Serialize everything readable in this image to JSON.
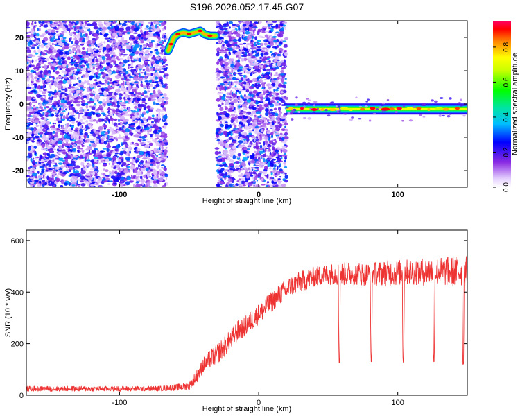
{
  "title": "S196.2026.052.17.45.G07",
  "chart_data": [
    {
      "type": "heatmap",
      "title": "S196.2026.052.17.45.G07",
      "xlabel": "Height of straight line (km)",
      "ylabel": "Frequency (Hz)",
      "xlim": [
        -167,
        150
      ],
      "ylim": [
        -25,
        25
      ],
      "xticks": [
        -100,
        0,
        100
      ],
      "yticks": [
        -20,
        -10,
        0,
        10,
        20
      ],
      "colorbar": {
        "label": "Normalized spectral amplitude",
        "range": [
          0,
          0.95
        ],
        "ticks": [
          0.0,
          0.2,
          0.4,
          0.6,
          0.8
        ]
      },
      "regions": [
        {
          "name": "noise",
          "x_range": [
            -167,
            -66
          ],
          "y_range": [
            -25,
            25
          ],
          "amplitude": [
            0.05,
            0.35
          ]
        },
        {
          "name": "blank",
          "x_range": [
            -66,
            -30
          ],
          "y_range": [
            -25,
            25
          ],
          "amplitude": [
            0,
            0
          ]
        },
        {
          "name": "noise",
          "x_range": [
            -30,
            20
          ],
          "y_range": [
            -25,
            25
          ],
          "amplitude": [
            0.05,
            0.35
          ]
        }
      ],
      "tracks": [
        {
          "name": "early-tone",
          "points": [
            [
              -65,
              16
            ],
            [
              -63,
              18
            ],
            [
              -61,
              20
            ],
            [
              -58,
              21
            ],
            [
              -54,
              21.5
            ],
            [
              -50,
              21
            ],
            [
              -46,
              21.5
            ],
            [
              -42,
              22
            ],
            [
              -39,
              21
            ],
            [
              -35,
              20.5
            ],
            [
              -31,
              20.5
            ]
          ],
          "amplitude": 0.9
        },
        {
          "name": "main-tone",
          "x_range": [
            20,
            150
          ],
          "y": -1.5,
          "amplitude": 0.9
        }
      ]
    },
    {
      "type": "line",
      "xlabel": "Height of straight line (km)",
      "ylabel": "SNR (10 * v/v)",
      "xlim": [
        -167,
        150
      ],
      "ylim": [
        0,
        640
      ],
      "xticks": [
        -100,
        0,
        100
      ],
      "yticks": [
        0,
        200,
        400,
        600
      ],
      "color": "#ee3333",
      "series": [
        {
          "name": "SNR",
          "x": [
            -167,
            -150,
            -130,
            -110,
            -90,
            -70,
            -60,
            -50,
            -45,
            -40,
            -35,
            -30,
            -25,
            -20,
            -15,
            -10,
            -5,
            0,
            5,
            10,
            15,
            20,
            25,
            30,
            35,
            40,
            45,
            50,
            60,
            70,
            80,
            90,
            100,
            110,
            120,
            130,
            140,
            150
          ],
          "y": [
            25,
            25,
            25,
            25,
            25,
            26,
            30,
            35,
            70,
            115,
            140,
            160,
            185,
            215,
            250,
            265,
            290,
            315,
            340,
            365,
            390,
            410,
            430,
            440,
            450,
            460,
            465,
            470,
            470,
            470,
            470,
            472,
            475,
            478,
            480,
            480,
            480,
            480
          ],
          "noise_amplitude": [
            10,
            10,
            10,
            10,
            10,
            10,
            12,
            15,
            25,
            30,
            35,
            40,
            40,
            40,
            40,
            40,
            40,
            40,
            40,
            40,
            40,
            40,
            40,
            40,
            40,
            40,
            40,
            40,
            45,
            45,
            45,
            50,
            50,
            50,
            55,
            55,
            60,
            60
          ]
        }
      ],
      "dips": [
        {
          "x": 58,
          "y": 125
        },
        {
          "x": 81,
          "y": 130
        },
        {
          "x": 104,
          "y": 128
        },
        {
          "x": 126,
          "y": 130
        },
        {
          "x": 147,
          "y": 120
        }
      ]
    }
  ]
}
